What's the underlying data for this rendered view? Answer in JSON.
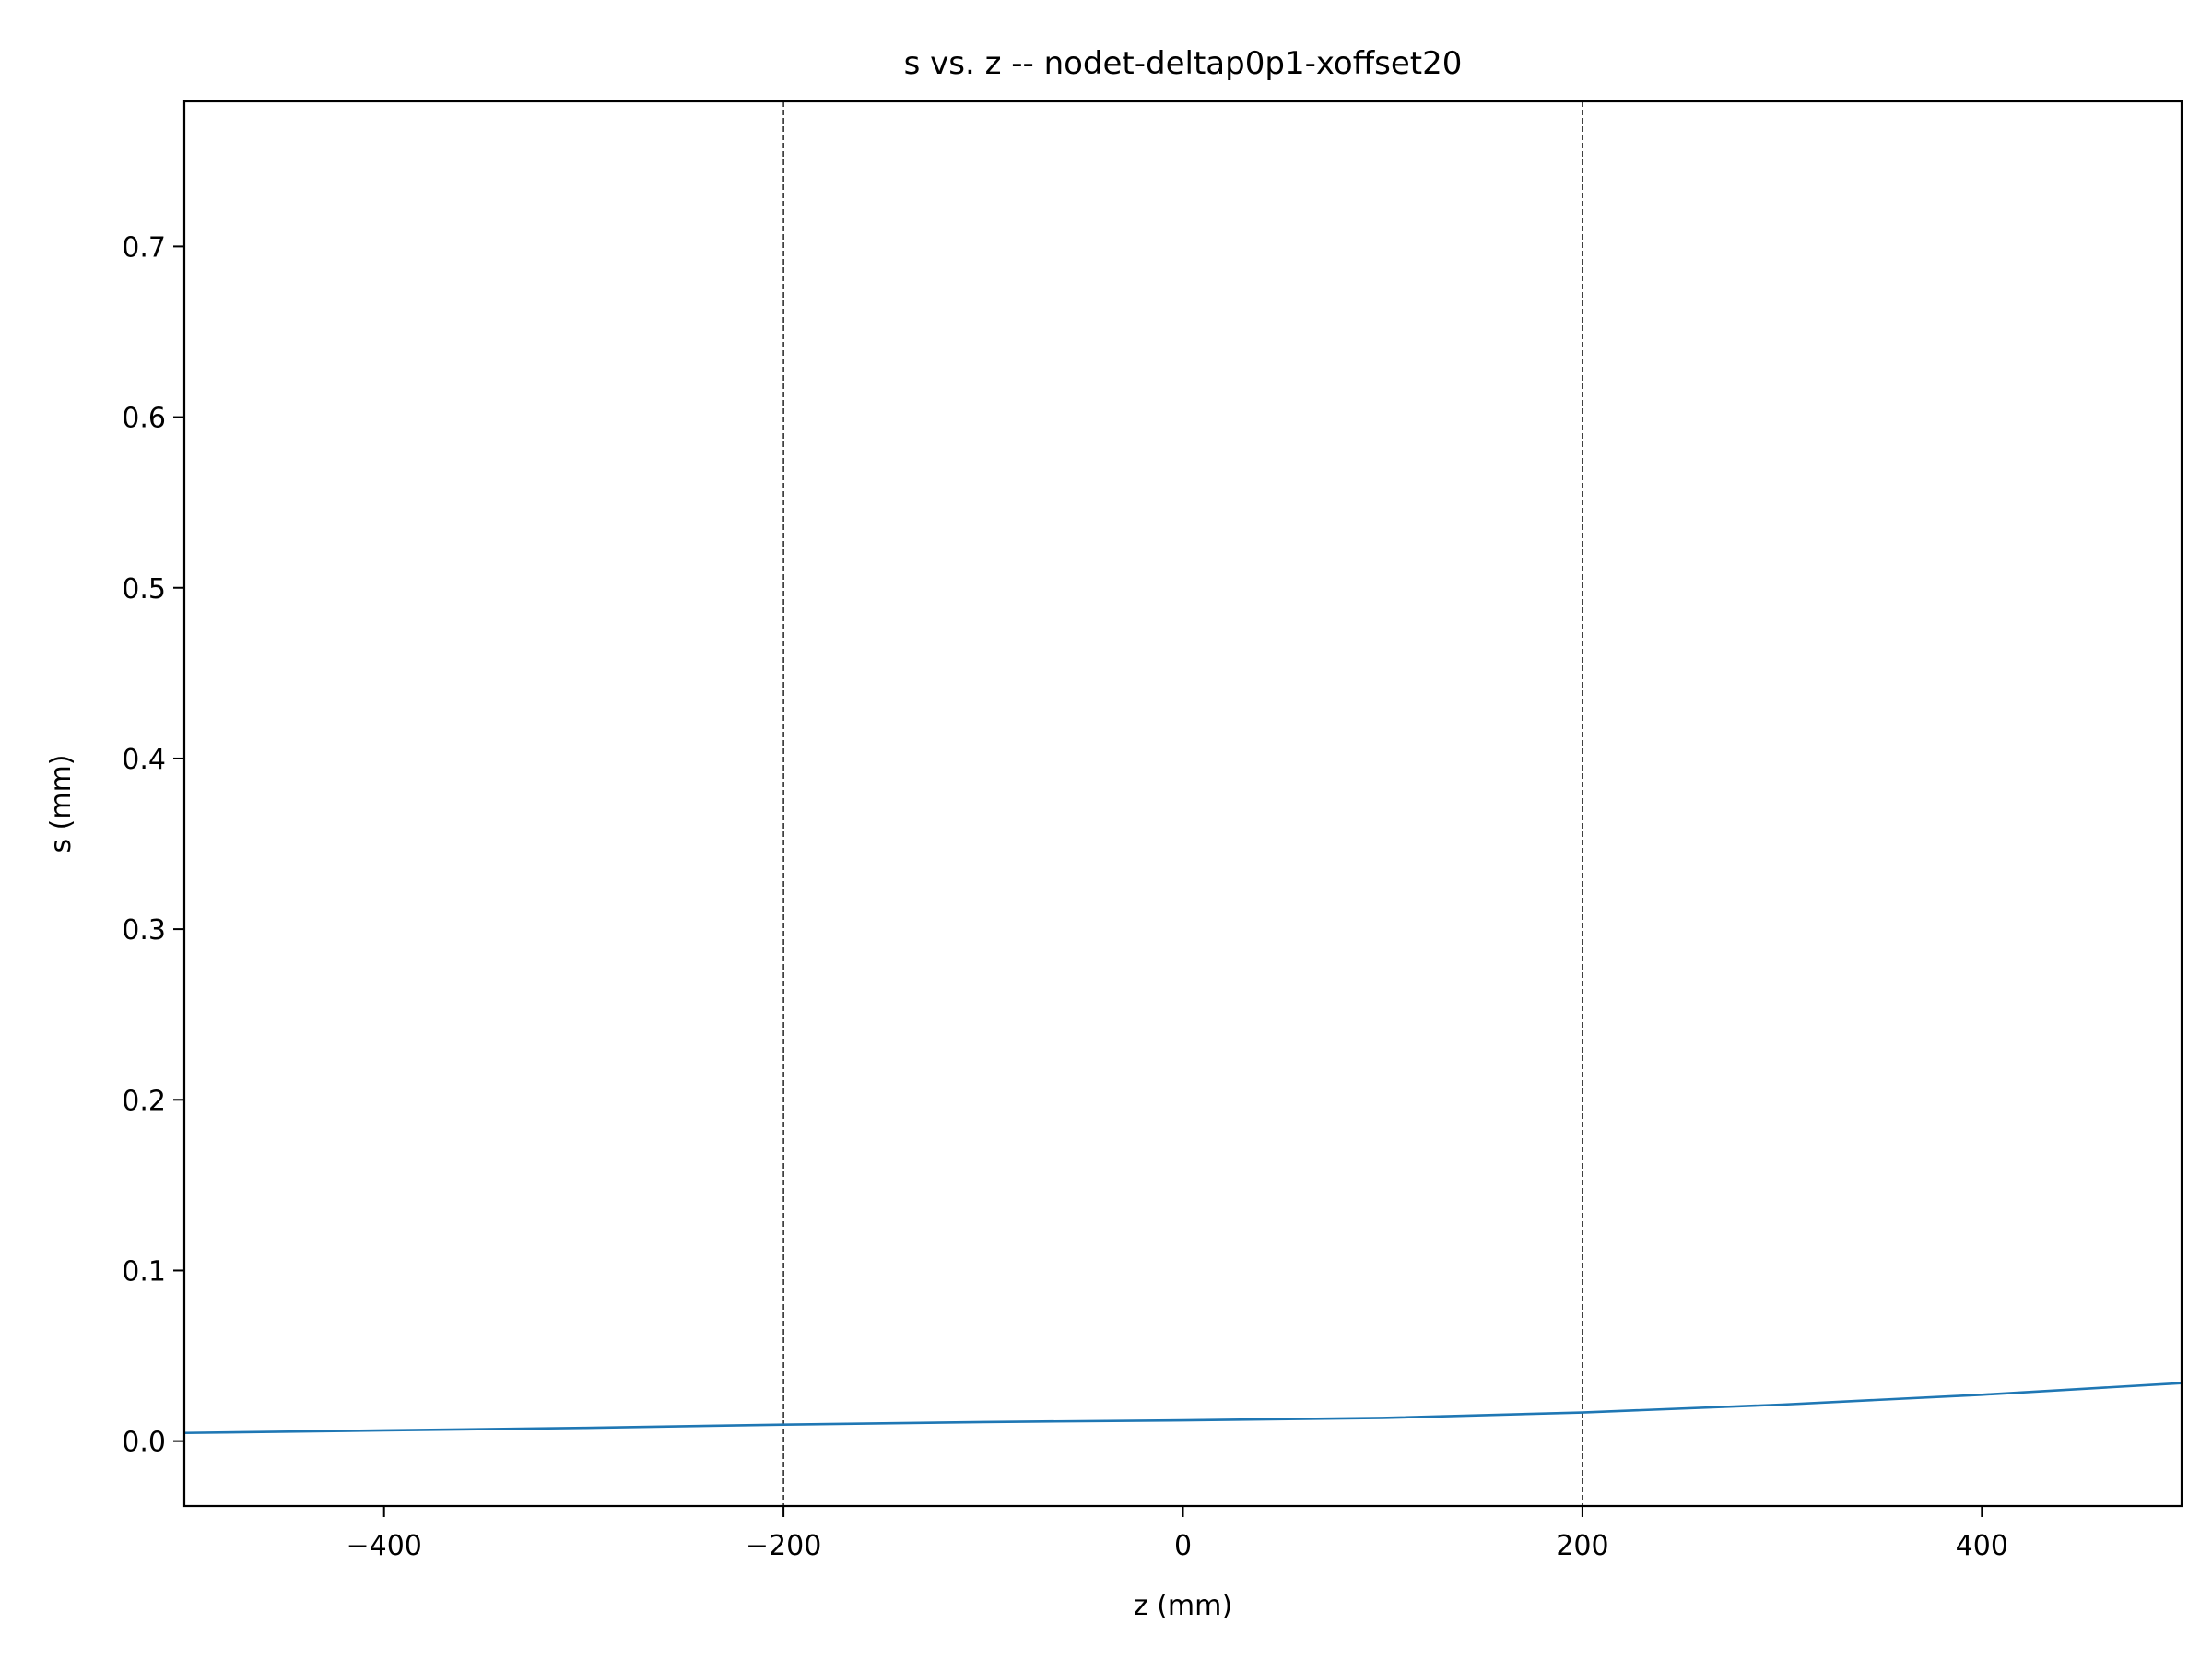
{
  "chart_data": {
    "type": "line",
    "title": "s vs. z -- nodet-deltap0p1-xoffset20",
    "xlabel": "z (mm)",
    "ylabel": "s (mm)",
    "xlim": [
      -500,
      500
    ],
    "ylim": [
      -0.038,
      0.785
    ],
    "xticks": [
      -400,
      -200,
      0,
      200,
      400
    ],
    "xtick_labels": [
      "−400",
      "−200",
      "0",
      "200",
      "400"
    ],
    "yticks": [
      0.0,
      0.1,
      0.2,
      0.3,
      0.4,
      0.5,
      0.6,
      0.7
    ],
    "ytick_labels": [
      "0.0",
      "0.1",
      "0.2",
      "0.3",
      "0.4",
      "0.5",
      "0.6",
      "0.7"
    ],
    "grid": false,
    "vlines": [
      -200,
      200
    ],
    "series": [
      {
        "name": "s",
        "color": "#1f77b4",
        "x": [
          -500,
          -400,
          -300,
          -200,
          -100,
          0,
          100,
          200,
          300,
          400,
          500
        ],
        "y": [
          0.0048,
          0.0063,
          0.0078,
          0.0097,
          0.0112,
          0.0122,
          0.0136,
          0.0168,
          0.0214,
          0.0272,
          0.034
        ]
      }
    ]
  }
}
